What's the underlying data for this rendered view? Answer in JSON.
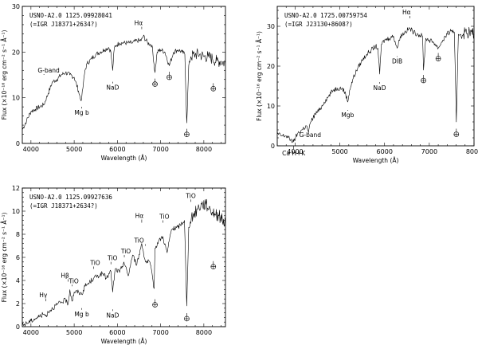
{
  "figure": {
    "panel_count": 3
  },
  "chart_data": [
    {
      "type": "line",
      "title_lines": [
        "USNO-A2.0 1125.09928041",
        "(=IGR J18371+2634?)"
      ],
      "xlabel": "Wavelength (Å)",
      "ylabel": "Flux (×10⁻¹⁶ erg cm⁻² s⁻¹ Å⁻¹)",
      "xlim": [
        3800,
        8500
      ],
      "ylim": [
        0,
        30
      ],
      "xticks": [
        4000,
        5000,
        6000,
        7000,
        8000
      ],
      "yticks": [
        0,
        10,
        20,
        30
      ],
      "series": [
        {
          "x": [
            3800,
            3900,
            4000,
            4100,
            4200,
            4300,
            4400,
            4500,
            4600,
            4700,
            4800,
            4900,
            5000,
            5100,
            5150,
            5175,
            5200,
            5250,
            5300,
            5400,
            5500,
            5600,
            5700,
            5800,
            5850,
            5890,
            5930,
            5980,
            6050,
            6150,
            6250,
            6350,
            6450,
            6550,
            6600,
            6700,
            6800,
            6870,
            6920,
            7000,
            7100,
            7200,
            7300,
            7400,
            7500,
            7560,
            7605,
            7650,
            7700,
            7800,
            7900,
            8000,
            8100,
            8200,
            8300,
            8400,
            8500
          ],
          "y": [
            3.0,
            5.0,
            7.0,
            7.5,
            8.0,
            8.5,
            11.0,
            13.5,
            14.0,
            15.0,
            15.5,
            15.0,
            14.5,
            11.5,
            9.5,
            10.0,
            12.0,
            16.0,
            17.5,
            18.5,
            19.5,
            20.0,
            20.5,
            21.0,
            20.0,
            16.0,
            21.0,
            21.5,
            22.0,
            22.0,
            22.0,
            22.0,
            22.5,
            22.5,
            23.5,
            22.0,
            21.5,
            15.5,
            20.0,
            20.5,
            20.0,
            17.0,
            20.0,
            20.5,
            20.0,
            19.5,
            4.5,
            17.0,
            19.0,
            19.5,
            19.5,
            19.0,
            19.0,
            18.5,
            18.0,
            18.0,
            17.5
          ]
        }
      ],
      "annotations": [
        {
          "text": "G-band",
          "x": 4300,
          "y": 15
        },
        {
          "text": "Mg b",
          "x": 5175,
          "y": 8
        },
        {
          "text": "NaD",
          "x": 5890,
          "y": 13.5
        },
        {
          "text": "Hα",
          "x": 6563,
          "y": 25
        },
        {
          "text": "⊕",
          "x": 6870,
          "y": 13.5
        },
        {
          "text": "⊕",
          "x": 7200,
          "y": 15
        },
        {
          "text": "⊕",
          "x": 7605,
          "y": 2.5
        },
        {
          "text": "⊕",
          "x": 8220,
          "y": 12.5
        }
      ]
    },
    {
      "type": "line",
      "title_lines": [
        "USNO-A2.0 1725.00759754",
        "(=IGR J23130+8608?)"
      ],
      "xlabel": "Wavelength (Å)",
      "ylabel": "Flux (×10⁻¹⁶ erg cm⁻² s⁻¹ Å⁻¹)",
      "xlim": [
        3600,
        8000
      ],
      "ylim": [
        0,
        35
      ],
      "xticks": [
        4000,
        5000,
        6000,
        7000,
        8000
      ],
      "yticks": [
        0,
        10,
        20,
        30
      ],
      "series": [
        {
          "x": [
            3600,
            3700,
            3800,
            3900,
            3968,
            4050,
            4150,
            4250,
            4300,
            4350,
            4450,
            4550,
            4650,
            4750,
            4850,
            4950,
            5050,
            5130,
            5175,
            5220,
            5300,
            5400,
            5500,
            5600,
            5700,
            5800,
            5850,
            5890,
            5930,
            6000,
            6100,
            6200,
            6283,
            6350,
            6450,
            6563,
            6650,
            6750,
            6850,
            6870,
            6920,
            7000,
            7100,
            7200,
            7300,
            7400,
            7500,
            7560,
            7605,
            7650,
            7700,
            7800,
            7900,
            8000
          ],
          "y": [
            3.0,
            2.5,
            2.5,
            1.5,
            1.0,
            3.0,
            4.0,
            5.0,
            3.5,
            6.0,
            8.0,
            9.0,
            11.0,
            12.5,
            14.0,
            14.5,
            14.5,
            13.0,
            11.0,
            14.0,
            17.0,
            19.5,
            21.5,
            23.0,
            24.0,
            25.0,
            24.5,
            18.0,
            25.5,
            26.5,
            27.0,
            27.5,
            24.5,
            27.5,
            28.5,
            29.5,
            28.5,
            28.0,
            27.5,
            19.0,
            27.0,
            26.5,
            26.0,
            24.5,
            26.5,
            28.0,
            29.0,
            28.5,
            6.0,
            28.0,
            28.0,
            28.5,
            28.5,
            28.0
          ]
        }
      ],
      "annotations": [
        {
          "text": "Ca H+K",
          "x": 3968,
          "y": 0
        },
        {
          "text": "G-band",
          "x": 4300,
          "y": 3
        },
        {
          "text": "Mgb",
          "x": 5175,
          "y": 9
        },
        {
          "text": "NaD",
          "x": 5890,
          "y": 16
        },
        {
          "text": "DIB",
          "x": 6283,
          "y": 22.5
        },
        {
          "text": "Hα",
          "x": 6563,
          "y": 32
        },
        {
          "text": "⊕",
          "x": 6870,
          "y": 17
        },
        {
          "text": "⊕",
          "x": 7200,
          "y": 22.5
        },
        {
          "text": "⊕",
          "x": 7605,
          "y": 3.5
        }
      ]
    },
    {
      "type": "line",
      "title_lines": [
        "USNO-A2.0 1125.09927636",
        "(=IGR J18371+2634?)"
      ],
      "xlabel": "Wavelength (Å)",
      "ylabel": "Flux (×10⁻¹⁶ erg cm⁻² s⁻¹ Å⁻¹)",
      "xlim": [
        3800,
        8500
      ],
      "ylim": [
        0,
        12
      ],
      "xticks": [
        4000,
        5000,
        6000,
        7000,
        8000
      ],
      "yticks": [
        0,
        2,
        4,
        6,
        8,
        10,
        12
      ],
      "series": [
        {
          "x": [
            3800,
            3900,
            4000,
            4100,
            4200,
            4300,
            4340,
            4400,
            4500,
            4600,
            4700,
            4800,
            4861,
            4900,
            4955,
            5000,
            5100,
            5175,
            5250,
            5350,
            5450,
            5550,
            5650,
            5750,
            5850,
            5890,
            5950,
            6050,
            6150,
            6250,
            6350,
            6450,
            6563,
            6650,
            6750,
            6850,
            6870,
            6950,
            7050,
            7150,
            7250,
            7400,
            7550,
            7605,
            7650,
            7750,
            7850,
            7950,
            8050,
            8150,
            8250,
            8350,
            8500
          ],
          "y": [
            0.1,
            0.3,
            0.5,
            0.7,
            0.9,
            1.1,
            0.9,
            1.3,
            1.6,
            1.9,
            2.1,
            2.3,
            2.0,
            3.2,
            2.2,
            3.0,
            3.0,
            2.8,
            3.5,
            3.8,
            4.2,
            4.4,
            4.6,
            4.2,
            4.8,
            3.0,
            5.0,
            4.7,
            5.6,
            4.4,
            6.2,
            5.4,
            7.2,
            5.6,
            5.6,
            3.3,
            6.8,
            7.4,
            7.8,
            6.4,
            8.4,
            8.6,
            9.2,
            1.8,
            8.6,
            9.6,
            10.2,
            10.6,
            10.6,
            10.2,
            9.8,
            9.6,
            9.0
          ]
        }
      ],
      "annotations": [
        {
          "text": "Hγ",
          "x": 4340,
          "y": 2.2
        },
        {
          "text": "Hβ",
          "x": 4861,
          "y": 3.9
        },
        {
          "text": "TiO",
          "x": 4955,
          "y": 3.5
        },
        {
          "text": "Mg b",
          "x": 5175,
          "y": 1.6
        },
        {
          "text": "TiO",
          "x": 5450,
          "y": 5.0
        },
        {
          "text": "NaD",
          "x": 5890,
          "y": 1.5
        },
        {
          "text": "TiO",
          "x": 5850,
          "y": 5.4
        },
        {
          "text": "TiO",
          "x": 6160,
          "y": 6.0
        },
        {
          "text": "TiO",
          "x": 6650,
          "y": 7.0
        },
        {
          "text": "Hα",
          "x": 6563,
          "y": 9.0
        },
        {
          "text": "TiO",
          "x": 7050,
          "y": 9.0
        },
        {
          "text": "TiO",
          "x": 7700,
          "y": 10.8
        },
        {
          "text": "⊕",
          "x": 6870,
          "y": 2.1
        },
        {
          "text": "⊕",
          "x": 7605,
          "y": 0.9
        },
        {
          "text": "⊕",
          "x": 8220,
          "y": 5.4
        }
      ]
    }
  ]
}
